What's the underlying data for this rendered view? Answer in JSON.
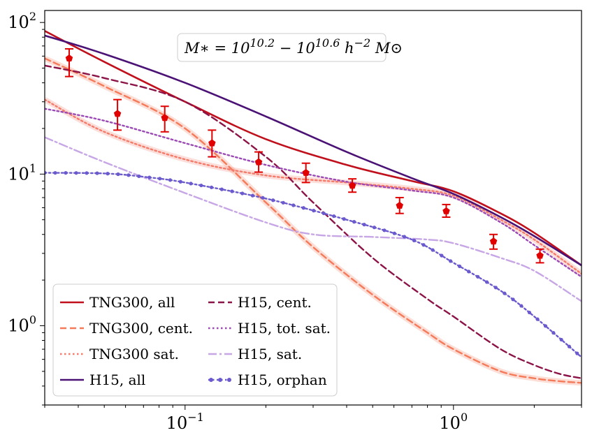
{
  "chart_data": {
    "type": "line",
    "title": "",
    "xlabel": "",
    "ylabel": "",
    "xscale": "log",
    "yscale": "log",
    "xlim": [
      0.03,
      3.0
    ],
    "ylim": [
      0.3,
      120
    ],
    "grid": false,
    "legend_position": "lower-left",
    "annotation": {
      "text_main": "M∗ = 10",
      "exp1": "10.2",
      "text_mid": " − 10",
      "exp2": "10.6",
      "text_h": " h",
      "exp3": "−2",
      "text_end": " M⊙"
    },
    "x_ticks": [
      {
        "value": 0.1,
        "base": "10",
        "exp": "−1"
      },
      {
        "value": 1.0,
        "base": "10",
        "exp": "0"
      }
    ],
    "y_ticks": [
      {
        "value": 1,
        "base": "10",
        "exp": "0"
      },
      {
        "value": 10,
        "base": "10",
        "exp": "1"
      },
      {
        "value": 100,
        "base": "10",
        "exp": "2"
      }
    ],
    "series": [
      {
        "name": "TNG300, all",
        "color": "#c0101c",
        "dash": "solid",
        "x": [
          0.03,
          0.05,
          0.1,
          0.2,
          0.4,
          0.7,
          1.0,
          1.5,
          2.0,
          3.0
        ],
        "y": [
          88,
          55,
          30,
          17,
          11.5,
          9.0,
          7.7,
          5.5,
          4.1,
          2.5
        ]
      },
      {
        "name": "TNG300, cent.",
        "color": "#f47a5a",
        "dash": "dashed",
        "x": [
          0.03,
          0.05,
          0.1,
          0.2,
          0.3,
          0.5,
          0.8,
          1.0,
          1.5,
          2.0,
          2.5,
          3.0
        ],
        "y": [
          58,
          38,
          20,
          6.5,
          3.3,
          1.6,
          0.9,
          0.7,
          0.5,
          0.45,
          0.43,
          0.42
        ]
      },
      {
        "name": "TNG300 sat.",
        "color": "#f47a6a",
        "dash": "dotted",
        "x": [
          0.03,
          0.05,
          0.1,
          0.2,
          0.4,
          0.7,
          1.0,
          1.5,
          2.0,
          3.0
        ],
        "y": [
          31,
          19,
          12.5,
          9.8,
          8.8,
          8.0,
          7.2,
          5.0,
          3.7,
          2.2
        ]
      },
      {
        "name": "H15, all",
        "color": "#4b1276",
        "dash": "solid",
        "x": [
          0.03,
          0.05,
          0.1,
          0.2,
          0.4,
          0.7,
          1.0,
          1.5,
          2.0,
          3.0
        ],
        "y": [
          82,
          62,
          40,
          24,
          14,
          9.4,
          7.4,
          5.2,
          3.9,
          2.5
        ]
      },
      {
        "name": "H15, cent.",
        "color": "#8c1347",
        "dash": "dashed",
        "x": [
          0.03,
          0.05,
          0.1,
          0.2,
          0.3,
          0.5,
          0.8,
          1.0,
          1.5,
          2.0,
          2.5,
          3.0
        ],
        "y": [
          52,
          43,
          30,
          13,
          6.5,
          2.8,
          1.5,
          1.15,
          0.7,
          0.55,
          0.48,
          0.45
        ]
      },
      {
        "name": "H15, tot. sat.",
        "color": "#9b4ab5",
        "dash": "dotted",
        "x": [
          0.03,
          0.05,
          0.1,
          0.2,
          0.4,
          0.7,
          1.0,
          1.5,
          2.0,
          3.0
        ],
        "y": [
          27,
          22.5,
          16,
          11.5,
          8.9,
          7.8,
          7.0,
          4.8,
          3.4,
          2.1
        ]
      },
      {
        "name": "H15, sat.",
        "color": "#c7a6e6",
        "dash": "dashdot",
        "x": [
          0.03,
          0.05,
          0.1,
          0.2,
          0.3,
          0.5,
          0.8,
          1.0,
          1.5,
          2.0,
          3.0
        ],
        "y": [
          17.5,
          12,
          7.5,
          4.8,
          4.0,
          3.85,
          3.7,
          3.5,
          2.8,
          2.3,
          1.45
        ]
      },
      {
        "name": "H15, orphan",
        "color": "#6a5acd",
        "dash": "dotted-marker",
        "x": [
          0.03,
          0.05,
          0.07,
          0.1,
          0.2,
          0.4,
          0.7,
          1.0,
          1.5,
          2.0,
          3.0
        ],
        "y": [
          10.2,
          10.1,
          9.6,
          8.8,
          6.9,
          5.0,
          3.7,
          2.6,
          1.7,
          1.15,
          0.62
        ]
      }
    ],
    "observations": {
      "name": "data points",
      "color": "#e00000",
      "x": [
        0.037,
        0.056,
        0.084,
        0.126,
        0.188,
        0.282,
        0.42,
        0.63,
        0.94,
        1.41,
        2.1
      ],
      "y": [
        58,
        25,
        23.5,
        16,
        12,
        10.2,
        8.4,
        6.2,
        5.7,
        3.6,
        2.9
      ],
      "yerr_low": [
        44,
        19.5,
        19,
        13,
        10.3,
        8.8,
        7.6,
        5.5,
        5.2,
        3.2,
        2.6
      ],
      "yerr_high": [
        67,
        31,
        28,
        19.5,
        14,
        11.8,
        9.3,
        7.0,
        6.3,
        4.0,
        3.2
      ]
    }
  }
}
